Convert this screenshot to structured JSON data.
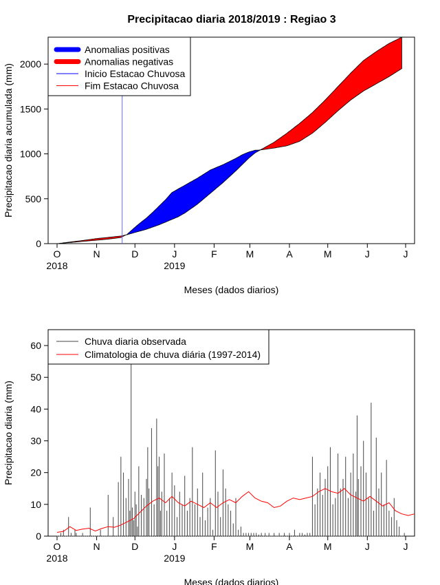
{
  "title": "Precipitacao diaria 2018/2019 : Regiao 3",
  "chart_data": [
    {
      "type": "area",
      "ylabel": "Precipitacao diaria acumulada (mm)",
      "xlabel": "Meses (dados diarios)",
      "ylim": [
        0,
        2300
      ],
      "yticks": [
        0,
        500,
        1000,
        1500,
        2000
      ],
      "xlim_days": [
        -7,
        280
      ],
      "month_ticks": [
        {
          "label": "O",
          "day": 0
        },
        {
          "label": "N",
          "day": 31
        },
        {
          "label": "D",
          "day": 61
        },
        {
          "label": "J",
          "day": 92
        },
        {
          "label": "F",
          "day": 123
        },
        {
          "label": "M",
          "day": 151
        },
        {
          "label": "A",
          "day": 182
        },
        {
          "label": "M",
          "day": 212
        },
        {
          "label": "J",
          "day": 243
        },
        {
          "label": "J",
          "day": 273
        }
      ],
      "year_labels": [
        {
          "label": "2018",
          "day": 0
        },
        {
          "label": "2019",
          "day": 92
        }
      ],
      "legend": [
        {
          "label": "Anomalias positivas",
          "color": "#0000ff",
          "kind": "thick"
        },
        {
          "label": "Anomalias negativas",
          "color": "#ff0000",
          "kind": "thick"
        },
        {
          "label": "Inicio Estacao Chuvosa",
          "color": "#0000ff",
          "kind": "line"
        },
        {
          "label": "Fim Estacao Chuvosa",
          "color": "#ff0000",
          "kind": "line"
        }
      ],
      "rainy_season_start_day": 51,
      "series": [
        {
          "name": "Acumulado observado",
          "x": [
            0,
            10,
            20,
            30,
            40,
            50,
            55,
            60,
            65,
            70,
            75,
            80,
            85,
            90,
            95,
            100,
            110,
            120,
            130,
            140,
            145,
            150,
            155,
            160,
            170,
            180,
            190,
            200,
            210,
            220,
            230,
            240,
            250,
            260,
            270
          ],
          "values": [
            0,
            12,
            25,
            37,
            50,
            68,
            105,
            170,
            230,
            285,
            350,
            420,
            490,
            570,
            610,
            650,
            730,
            820,
            880,
            950,
            990,
            1020,
            1040,
            1045,
            1065,
            1090,
            1140,
            1230,
            1350,
            1480,
            1600,
            1700,
            1780,
            1860,
            1950
          ]
        },
        {
          "name": "Acumulado climatologico",
          "x": [
            0,
            10,
            20,
            30,
            40,
            50,
            55,
            60,
            65,
            70,
            75,
            80,
            85,
            90,
            95,
            100,
            110,
            120,
            130,
            140,
            145,
            150,
            155,
            160,
            170,
            180,
            190,
            200,
            210,
            220,
            230,
            240,
            250,
            260,
            270
          ],
          "values": [
            0,
            18,
            35,
            55,
            70,
            85,
            100,
            120,
            140,
            160,
            185,
            210,
            240,
            270,
            300,
            340,
            440,
            560,
            680,
            810,
            880,
            950,
            1010,
            1050,
            1130,
            1230,
            1340,
            1460,
            1600,
            1750,
            1900,
            2040,
            2140,
            2230,
            2300
          ]
        }
      ]
    },
    {
      "type": "bar",
      "ylabel": "Precipitacao diaria (mm)",
      "xlabel": "Meses (dados diarios)",
      "ylim": [
        0,
        65
      ],
      "yticks": [
        0,
        10,
        20,
        30,
        40,
        50,
        60
      ],
      "xlim_days": [
        -7,
        280
      ],
      "legend": [
        {
          "label": "Chuva diaria observada",
          "color": "#444444"
        },
        {
          "label": "Climatologia de chuva diária (1997-2014)",
          "color": "#ff0000"
        }
      ],
      "series": [
        {
          "name": "Chuva diaria observada",
          "x": [
            3,
            5,
            9,
            11,
            14,
            15,
            20,
            26,
            34,
            40,
            44,
            48,
            50,
            52,
            54,
            56,
            57,
            58,
            59,
            60,
            61,
            62,
            63,
            64,
            66,
            68,
            70,
            71,
            72,
            74,
            76,
            78,
            79,
            80,
            81,
            82,
            84,
            86,
            88,
            90,
            92,
            94,
            96,
            98,
            100,
            102,
            104,
            106,
            108,
            110,
            112,
            114,
            116,
            118,
            120,
            122,
            124,
            126,
            128,
            130,
            132,
            134,
            136,
            138,
            140,
            142,
            144,
            146,
            148,
            150,
            152,
            154,
            156,
            158,
            160,
            163,
            166,
            170,
            174,
            178,
            182,
            186,
            190,
            192,
            194,
            196,
            198,
            200,
            202,
            204,
            206,
            208,
            210,
            212,
            214,
            216,
            218,
            220,
            222,
            224,
            226,
            228,
            230,
            232,
            234,
            235,
            236,
            238,
            240,
            242,
            244,
            246,
            248,
            250,
            252,
            254,
            256,
            258,
            260,
            262,
            264,
            266,
            268,
            272
          ],
          "values": [
            1,
            2,
            6,
            1,
            2,
            1,
            1,
            9,
            2,
            13,
            6,
            17,
            25,
            20,
            12,
            18,
            8,
            60,
            9,
            5,
            14,
            10,
            3,
            22,
            13,
            12,
            18,
            28,
            15,
            34,
            10,
            37,
            22,
            25,
            8,
            14,
            26,
            8,
            12,
            20,
            16,
            6,
            14,
            10,
            19,
            8,
            12,
            28,
            10,
            15,
            6,
            20,
            5,
            9,
            12,
            2,
            27,
            14,
            6,
            21,
            15,
            10,
            8,
            4,
            12,
            2,
            3,
            1,
            1,
            1,
            1,
            1,
            1,
            0.5,
            1,
            1,
            1,
            1,
            1,
            1,
            1,
            2,
            1,
            1,
            0.5,
            1,
            1,
            25,
            10,
            15,
            20,
            13,
            18,
            22,
            28,
            10,
            12,
            26,
            15,
            18,
            25,
            12,
            20,
            26,
            14,
            38,
            18,
            22,
            30,
            20,
            12,
            42,
            8,
            31,
            15,
            20,
            10,
            24,
            8,
            6,
            12,
            5,
            3,
            1
          ]
        },
        {
          "name": "Climatologia de chuva diária (1997-2014)",
          "x": [
            0,
            5,
            10,
            15,
            20,
            25,
            30,
            35,
            40,
            45,
            50,
            55,
            60,
            65,
            70,
            75,
            80,
            85,
            90,
            95,
            100,
            105,
            110,
            115,
            120,
            125,
            130,
            135,
            140,
            145,
            150,
            155,
            160,
            165,
            170,
            175,
            180,
            185,
            190,
            195,
            200,
            205,
            210,
            215,
            220,
            225,
            230,
            235,
            240,
            245,
            250,
            255,
            260,
            265,
            270,
            275,
            280
          ],
          "values": [
            1.2,
            1.5,
            3,
            1.8,
            2.2,
            2.5,
            1.6,
            2.4,
            3,
            2.8,
            3.5,
            4.5,
            5.5,
            7.5,
            9.5,
            11,
            12,
            10.5,
            12.5,
            10.5,
            9.5,
            11,
            10,
            9,
            10.5,
            9,
            10.5,
            11.5,
            10.5,
            12.5,
            14,
            12,
            11,
            10.5,
            9,
            9.5,
            11,
            12,
            11.5,
            12,
            12.5,
            14,
            15,
            14,
            13.5,
            15,
            13,
            12,
            11,
            12.5,
            11,
            9.5,
            10.5,
            8,
            7,
            6.5,
            7
          ]
        }
      ]
    }
  ]
}
